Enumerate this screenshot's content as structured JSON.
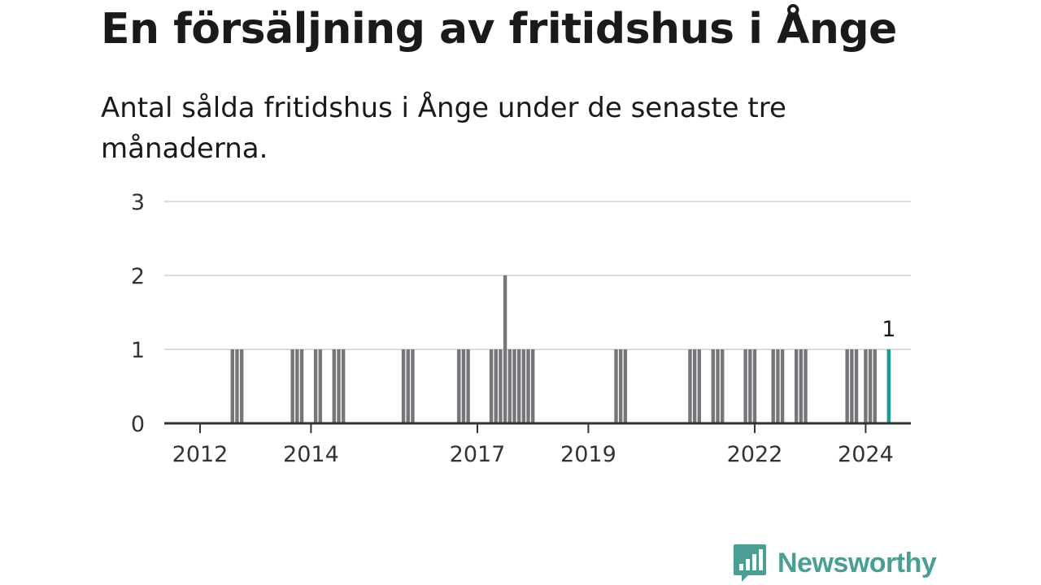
{
  "header": {
    "title": "En försäljning av fritidshus i Ånge",
    "subtitle": "Antal sålda fritidshus i Ånge under de senaste tre månaderna."
  },
  "brand": {
    "name": "Newsworthy",
    "color": "#4a9e94",
    "logo_icon": "bar-chart-speech-bubble-icon"
  },
  "colors": {
    "bar": "#76767a",
    "highlight": "#1f9a93",
    "grid": "#dcdcdc",
    "axis": "#333333"
  },
  "chart_data": {
    "type": "bar",
    "title": "En försäljning av fritidshus i Ånge",
    "subtitle": "Antal sålda fritidshus i Ånge under de senaste tre månaderna.",
    "xlabel": "",
    "ylabel": "",
    "ylim": [
      0,
      3
    ],
    "yticks": [
      0,
      1,
      2,
      3
    ],
    "xticks": [
      "2012",
      "2014",
      "2017",
      "2019",
      "2022",
      "2024"
    ],
    "grid": true,
    "legend": "none",
    "categories": [
      "2012-08",
      "2012-09",
      "2012-10",
      "2013-09",
      "2013-10",
      "2013-11",
      "2014-02",
      "2014-03",
      "2014-06",
      "2014-07",
      "2014-08",
      "2015-09",
      "2015-10",
      "2015-11",
      "2016-09",
      "2016-10",
      "2016-11",
      "2017-04",
      "2017-05",
      "2017-06",
      "2017-07",
      "2017-08",
      "2017-09",
      "2017-10",
      "2017-11",
      "2017-12",
      "2018-01",
      "2019-07",
      "2019-08",
      "2019-09",
      "2020-11",
      "2020-12",
      "2021-01",
      "2021-04",
      "2021-05",
      "2021-06",
      "2021-11",
      "2021-12",
      "2022-01",
      "2022-05",
      "2022-06",
      "2022-07",
      "2022-10",
      "2022-11",
      "2022-12",
      "2023-09",
      "2023-10",
      "2023-11",
      "2024-01",
      "2024-02",
      "2024-03",
      "2024-06"
    ],
    "values": [
      1,
      1,
      1,
      1,
      1,
      1,
      1,
      1,
      1,
      1,
      1,
      1,
      1,
      1,
      1,
      1,
      1,
      1,
      1,
      1,
      2,
      1,
      1,
      1,
      1,
      1,
      1,
      1,
      1,
      1,
      1,
      1,
      1,
      1,
      1,
      1,
      1,
      1,
      1,
      1,
      1,
      1,
      1,
      1,
      1,
      1,
      1,
      1,
      1,
      1,
      1,
      1
    ],
    "highlight": {
      "category": "2024-06",
      "value": 1,
      "label": "1"
    }
  }
}
